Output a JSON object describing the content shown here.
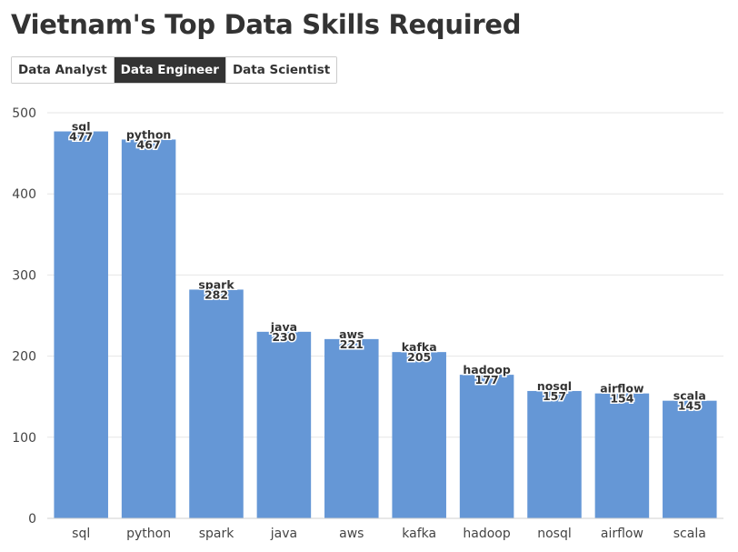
{
  "page": {
    "title": "Vietnam's Top Data Skills Required"
  },
  "tabs": [
    {
      "label": "Data Analyst",
      "active": false
    },
    {
      "label": "Data Engineer",
      "active": true
    },
    {
      "label": "Data Scientist",
      "active": false
    }
  ],
  "colors": {
    "bar": "#6597d6",
    "active_tab_bg": "#333333",
    "gridline": "#e6e6e6"
  },
  "chart_data": {
    "type": "bar",
    "title": "",
    "xlabel": "",
    "ylabel": "",
    "categories": [
      "sql",
      "python",
      "spark",
      "java",
      "aws",
      "kafka",
      "hadoop",
      "nosql",
      "airflow",
      "scala"
    ],
    "values": [
      477,
      467,
      282,
      230,
      221,
      205,
      177,
      157,
      154,
      145
    ],
    "ylim": [
      0,
      500
    ],
    "yticks": [
      0,
      100,
      200,
      300,
      400,
      500
    ],
    "grid": true,
    "legend": "none"
  }
}
